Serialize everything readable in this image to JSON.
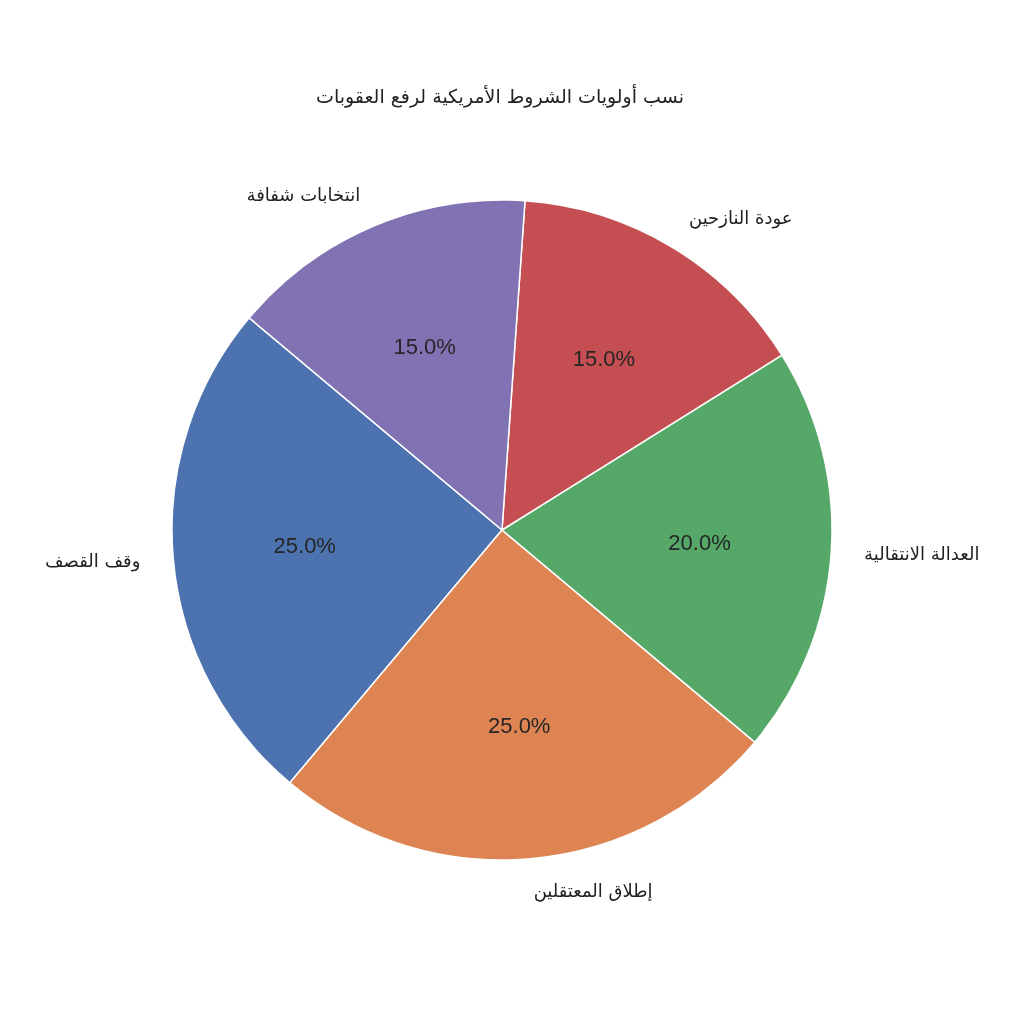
{
  "chart_data": {
    "type": "pie",
    "title": "نسب أولويات الشروط الأمريكية لرفع العقوبات",
    "categories": [
      "وقف القصف",
      "إطلاق المعتقلين",
      "العدالة الانتقالية",
      "عودة النازحين",
      "انتخابات شفافة"
    ],
    "values": [
      25,
      25,
      20,
      15,
      15
    ],
    "colors": [
      "#4c72b0",
      "#dd8452",
      "#55a868",
      "#c44e52",
      "#8172b3"
    ],
    "value_labels": [
      "25.0%",
      "25.0%",
      "20.0%",
      "15.0%",
      "15.0%"
    ]
  }
}
